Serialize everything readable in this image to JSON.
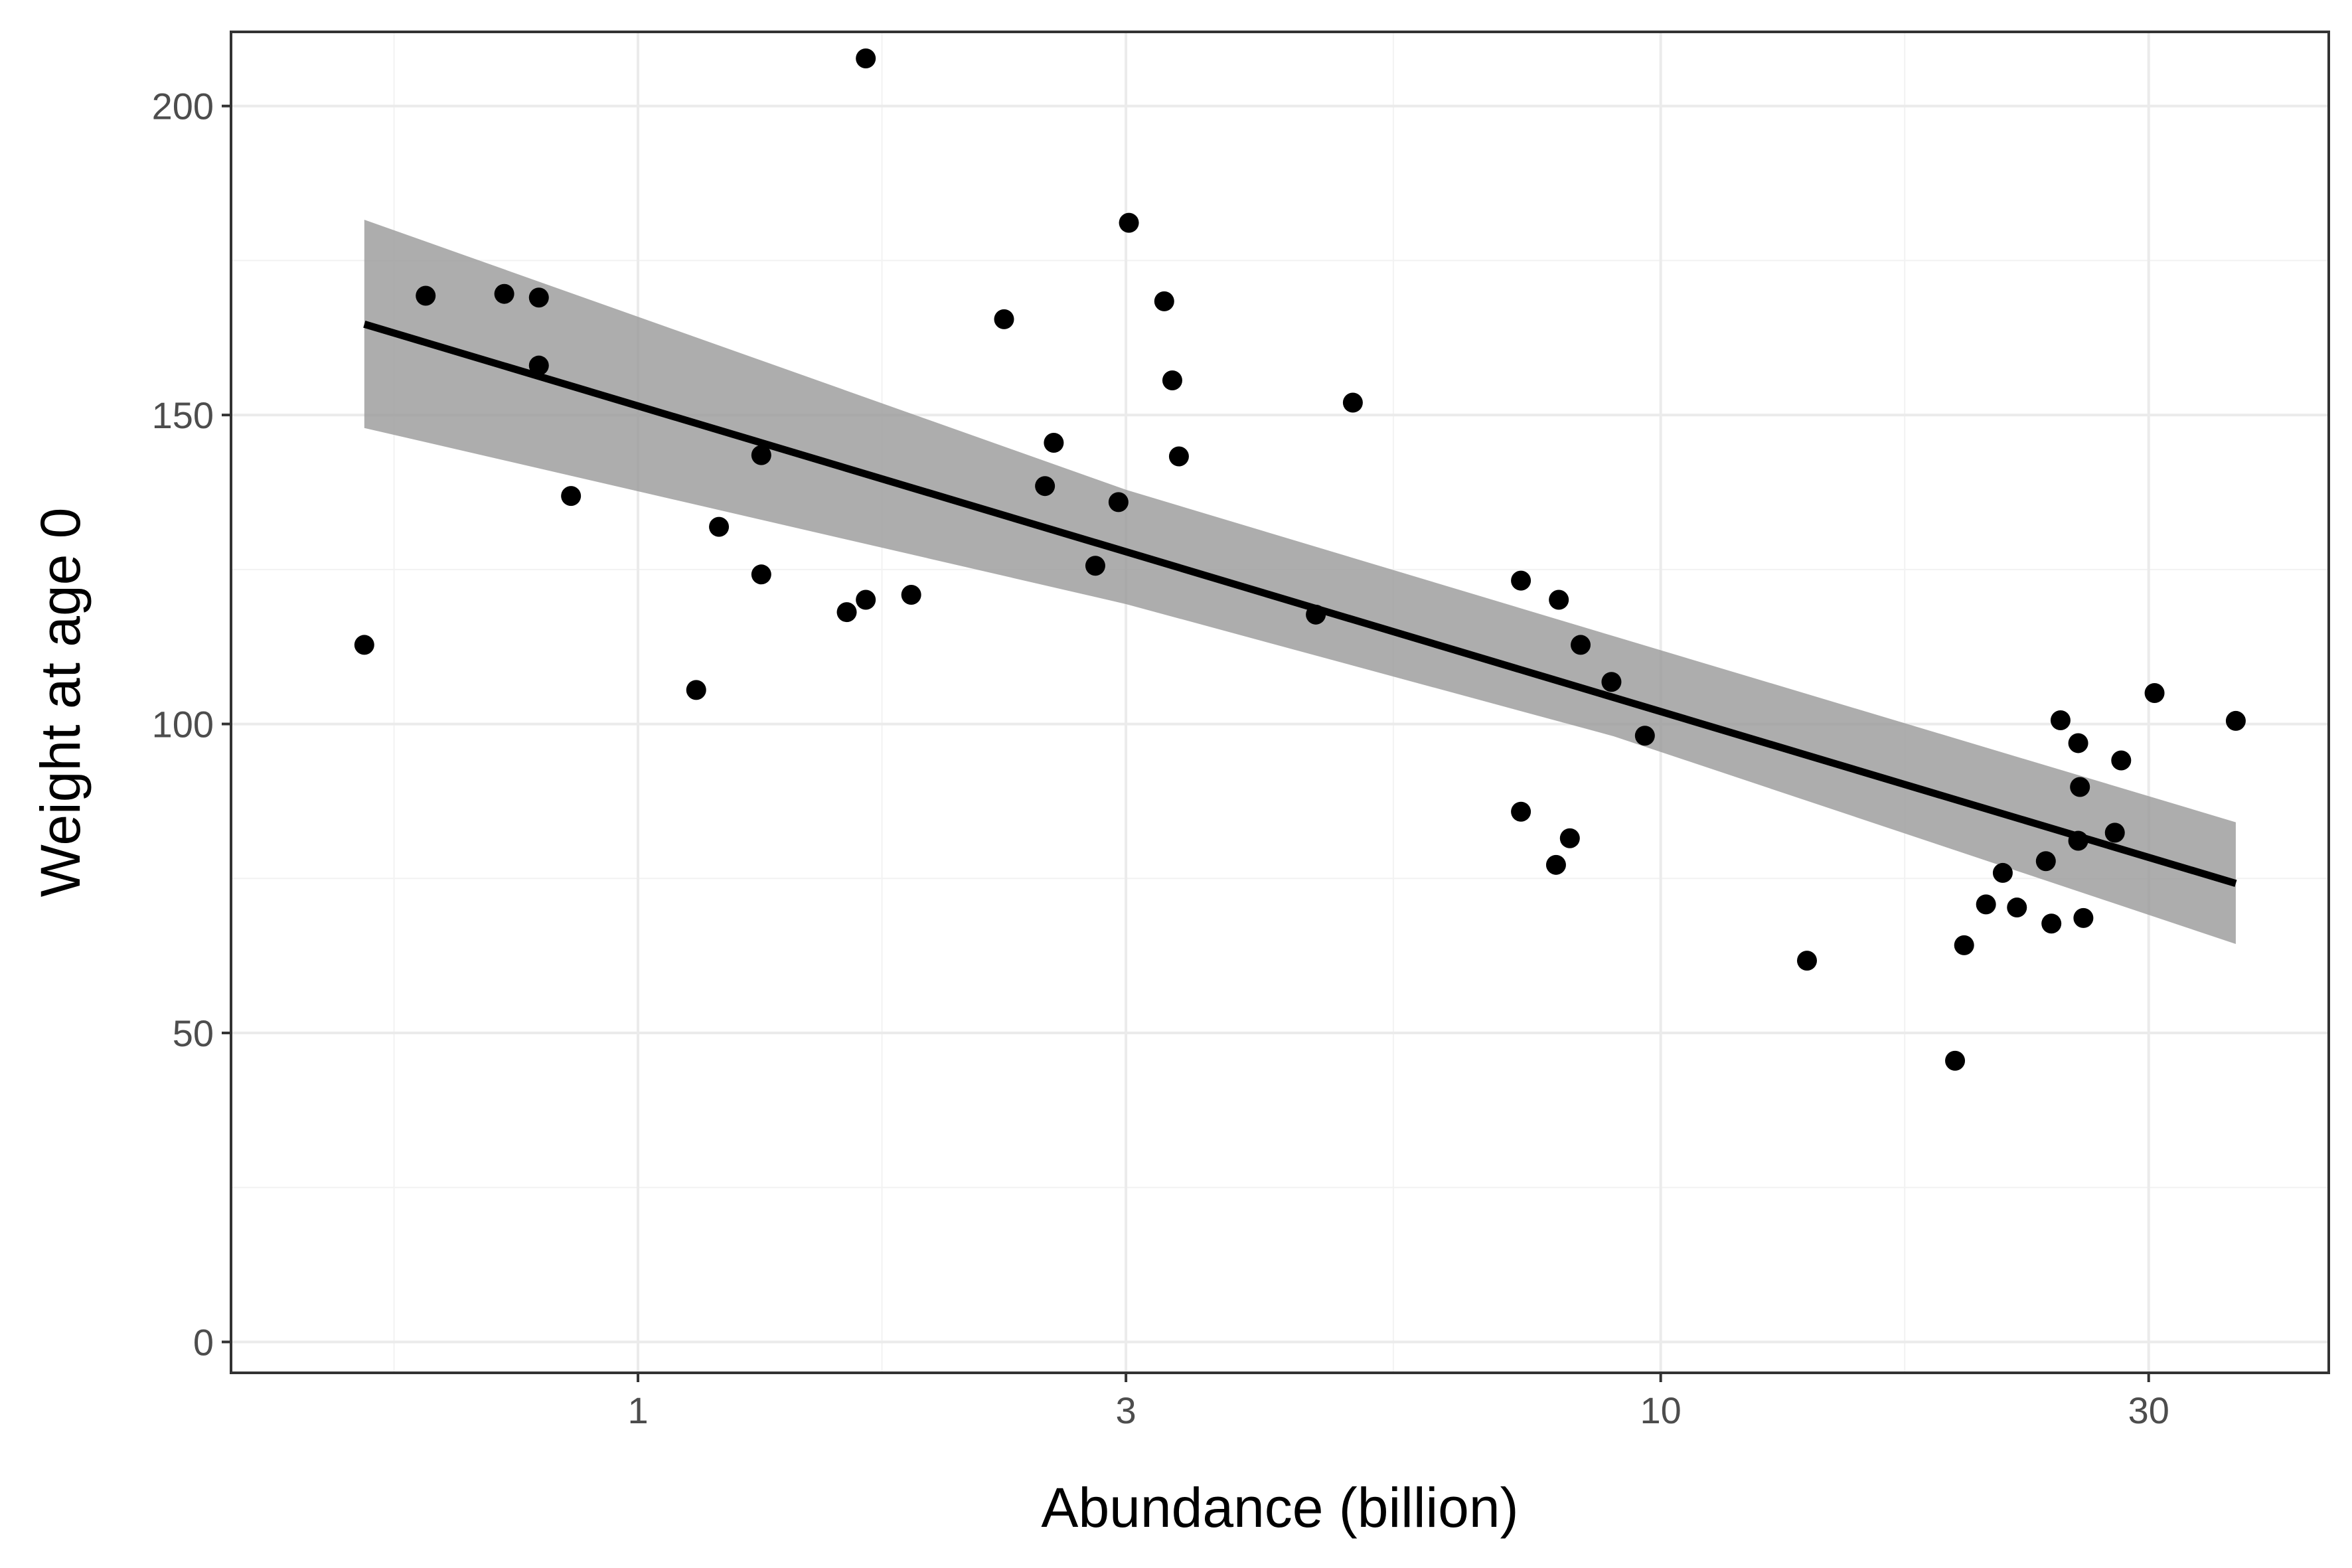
{
  "chart_data": {
    "type": "scatter",
    "title": "",
    "xlabel": "Abundance (billion)",
    "ylabel": "Weight at age 0",
    "x_scale": "log10",
    "xlim": [
      0.4,
      45
    ],
    "ylim": [
      -5,
      212
    ],
    "x_ticks": [
      1,
      3,
      10,
      30
    ],
    "x_tick_labels": [
      "1",
      "3",
      "10",
      "30"
    ],
    "y_ticks": [
      0,
      50,
      100,
      150,
      200
    ],
    "y_tick_labels": [
      "0",
      "50",
      "100",
      "150",
      "200"
    ],
    "grid": true,
    "legend": "none",
    "points": [
      {
        "x": 0.54,
        "y": 112.8
      },
      {
        "x": 0.62,
        "y": 169.3
      },
      {
        "x": 0.74,
        "y": 169.6
      },
      {
        "x": 0.8,
        "y": 169.0
      },
      {
        "x": 0.8,
        "y": 158.0
      },
      {
        "x": 0.86,
        "y": 136.9
      },
      {
        "x": 1.14,
        "y": 105.5
      },
      {
        "x": 1.2,
        "y": 131.9
      },
      {
        "x": 1.32,
        "y": 143.5
      },
      {
        "x": 1.32,
        "y": 124.2
      },
      {
        "x": 1.6,
        "y": 118.1
      },
      {
        "x": 1.67,
        "y": 207.7
      },
      {
        "x": 1.67,
        "y": 120.1
      },
      {
        "x": 1.85,
        "y": 120.9
      },
      {
        "x": 2.28,
        "y": 165.5
      },
      {
        "x": 2.5,
        "y": 138.5
      },
      {
        "x": 2.55,
        "y": 145.5
      },
      {
        "x": 2.8,
        "y": 125.6
      },
      {
        "x": 2.95,
        "y": 135.9
      },
      {
        "x": 3.02,
        "y": 181.1
      },
      {
        "x": 3.27,
        "y": 168.4
      },
      {
        "x": 3.33,
        "y": 155.6
      },
      {
        "x": 3.38,
        "y": 143.3
      },
      {
        "x": 4.6,
        "y": 117.7
      },
      {
        "x": 5.0,
        "y": 152.0
      },
      {
        "x": 7.3,
        "y": 123.2
      },
      {
        "x": 7.3,
        "y": 85.8
      },
      {
        "x": 7.9,
        "y": 77.2
      },
      {
        "x": 7.95,
        "y": 120.1
      },
      {
        "x": 8.15,
        "y": 81.5
      },
      {
        "x": 8.35,
        "y": 112.8
      },
      {
        "x": 8.95,
        "y": 106.8
      },
      {
        "x": 9.65,
        "y": 98.1
      },
      {
        "x": 13.9,
        "y": 61.7
      },
      {
        "x": 19.4,
        "y": 45.5
      },
      {
        "x": 19.8,
        "y": 64.2
      },
      {
        "x": 20.8,
        "y": 70.8
      },
      {
        "x": 21.6,
        "y": 75.9
      },
      {
        "x": 22.3,
        "y": 70.3
      },
      {
        "x": 23.8,
        "y": 77.8
      },
      {
        "x": 24.1,
        "y": 67.7
      },
      {
        "x": 24.6,
        "y": 100.6
      },
      {
        "x": 25.6,
        "y": 96.9
      },
      {
        "x": 25.7,
        "y": 89.8
      },
      {
        "x": 25.6,
        "y": 81.1
      },
      {
        "x": 25.9,
        "y": 68.6
      },
      {
        "x": 27.8,
        "y": 82.4
      },
      {
        "x": 28.2,
        "y": 94.1
      },
      {
        "x": 30.4,
        "y": 105.0
      },
      {
        "x": 36.5,
        "y": 100.5
      }
    ],
    "fit_line": {
      "x": [
        0.54,
        36.5
      ],
      "y": [
        164.7,
        74.2
      ]
    },
    "confidence_band": {
      "x": [
        0.54,
        3.0,
        9.0,
        36.5
      ],
      "upper": [
        181.6,
        137.9,
        114.2,
        84.1
      ],
      "lower": [
        147.9,
        119.4,
        98.0,
        64.4
      ]
    }
  },
  "colors": {
    "points": "#000000",
    "fit_line": "#000000",
    "band": "#999999",
    "grid_major": "#ebebeb",
    "grid_minor": "#f2f2f2",
    "panel_border": "#333333"
  }
}
